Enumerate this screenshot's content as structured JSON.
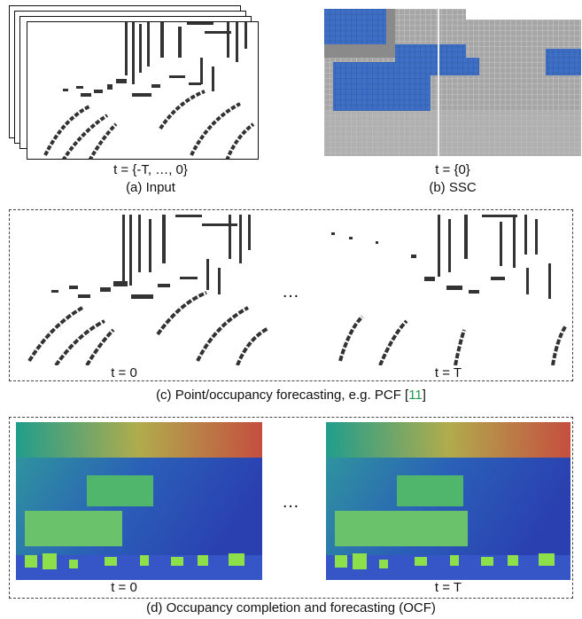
{
  "figure": {
    "top_left": {
      "time_label": "t = {-T, …, 0}",
      "caption": "(a) Input"
    },
    "top_right": {
      "time_label": "t = {0}",
      "caption": "(b) SSC"
    },
    "row_c": {
      "left_time": "t = 0",
      "right_time": "t = T",
      "ellipsis": "…",
      "caption_prefix": "(c) Point/occupancy forecasting, e.g. PCF [",
      "caption_cite": "11",
      "caption_suffix": "]"
    },
    "row_d": {
      "left_time": "t = 0",
      "right_time": "t = T",
      "ellipsis": "…",
      "caption": "(d) Occupancy completion and forecasting (OCF)"
    }
  },
  "colors": {
    "occupied_voxel": "#333333",
    "ssc_background": "#9a9a9a",
    "ssc_car": "#3f6fc4",
    "cite": "#1aa34a"
  }
}
